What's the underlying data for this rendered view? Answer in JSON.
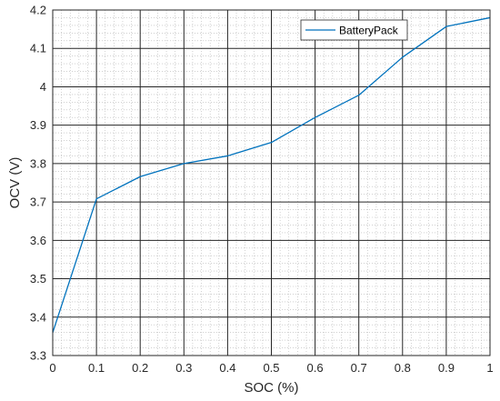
{
  "chart_data": {
    "type": "line",
    "xlabel": "SOC (%)",
    "ylabel": "OCV (V)",
    "xlim": [
      0,
      1
    ],
    "ylim": [
      3.3,
      4.2
    ],
    "xticks": [
      "0",
      "0.1",
      "0.2",
      "0.3",
      "0.4",
      "0.5",
      "0.6",
      "0.7",
      "0.8",
      "0.9",
      "1"
    ],
    "yticks": [
      "3.3",
      "3.4",
      "3.5",
      "3.6",
      "3.7",
      "3.8",
      "3.9",
      "4",
      "4.1",
      "4.2"
    ],
    "grid": "on",
    "minor_grid": "on",
    "legend_position": "top-right",
    "series": [
      {
        "name": "BatteryPack",
        "color": "#0072BD",
        "x": [
          0,
          0.1,
          0.2,
          0.3,
          0.4,
          0.5,
          0.6,
          0.7,
          0.8,
          0.9,
          1.0
        ],
        "y": [
          3.36,
          3.708,
          3.766,
          3.8,
          3.82,
          3.855,
          3.92,
          3.978,
          4.077,
          4.157,
          4.18
        ]
      }
    ]
  }
}
